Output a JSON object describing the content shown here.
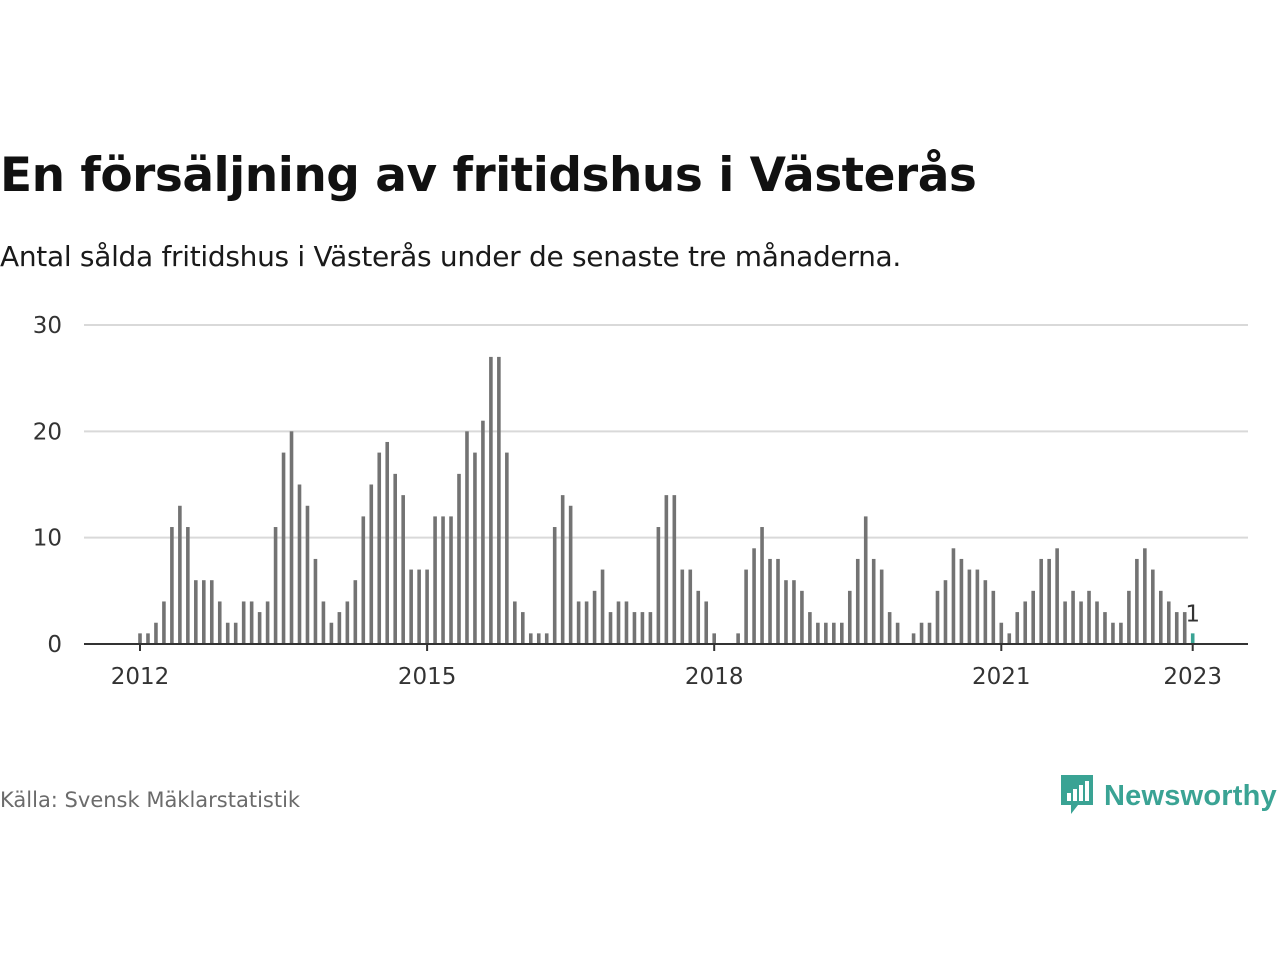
{
  "title": "En försäljning av fritidshus i Västerås",
  "subtitle": "Antal sålda fritidshus i Västerås under de senaste tre månaderna.",
  "source": "Källa: Svensk Mäklarstatistik",
  "brand": {
    "name": "Newsworthy",
    "icon": "newsworthy-logo-icon",
    "color": "#3aa394"
  },
  "colors": {
    "bar": "#737373",
    "highlight": "#3aa394",
    "grid": "#d9d9d9",
    "axis": "#333333"
  },
  "chart_data": {
    "type": "bar",
    "title": "En försäljning av fritidshus i Västerås",
    "xlabel": "",
    "ylabel": "",
    "ylim": [
      0,
      30
    ],
    "yticks": [
      "0",
      "10",
      "20",
      "30"
    ],
    "xticks": [
      "2012",
      "2015",
      "2018",
      "2021",
      "2023"
    ],
    "grid": true,
    "start": "2012-01",
    "end": "2023-01",
    "frequency": "monthly",
    "values": [
      1,
      1,
      2,
      4,
      11,
      13,
      11,
      6,
      6,
      6,
      4,
      2,
      2,
      4,
      4,
      3,
      4,
      11,
      18,
      20,
      15,
      13,
      8,
      4,
      2,
      3,
      4,
      6,
      12,
      15,
      18,
      19,
      16,
      14,
      7,
      7,
      7,
      12,
      12,
      12,
      16,
      20,
      18,
      21,
      27,
      27,
      18,
      4,
      3,
      1,
      1,
      1,
      11,
      14,
      13,
      4,
      4,
      5,
      7,
      3,
      4,
      4,
      3,
      3,
      3,
      11,
      14,
      14,
      7,
      7,
      5,
      4,
      1,
      0,
      0,
      1,
      7,
      9,
      11,
      8,
      8,
      6,
      6,
      5,
      3,
      2,
      2,
      2,
      2,
      5,
      8,
      12,
      8,
      7,
      3,
      2,
      0,
      1,
      2,
      2,
      5,
      6,
      9,
      8,
      7,
      7,
      6,
      5,
      2,
      1,
      3,
      4,
      5,
      8,
      8,
      9,
      4,
      5,
      4,
      5,
      4,
      3,
      2,
      2,
      5,
      8,
      9,
      7,
      5,
      4,
      3,
      3,
      1
    ],
    "highlight_last": true,
    "annotation": {
      "label": "1",
      "month": "2023-01"
    }
  }
}
